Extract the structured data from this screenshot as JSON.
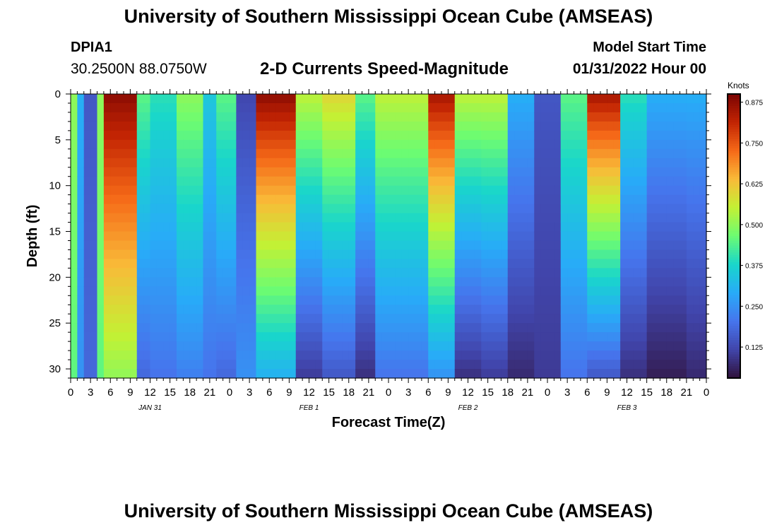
{
  "page": {
    "title": "University of Southern Mississippi Ocean Cube (AMSEAS)",
    "footer_title": "University of Southern Mississippi Ocean Cube (AMSEAS)",
    "station_id": "DPIA1",
    "station_coords": "30.2500N  88.0750W",
    "model_start_label": "Model Start Time",
    "model_start_value": "01/31/2022 Hour 00"
  },
  "chart_data": {
    "type": "heatmap",
    "title": "2-D Currents Speed-Magnitude",
    "xlabel": "Forecast Time(Z)",
    "ylabel": "Depth (ft)",
    "x_tick_labels": [
      "0",
      "3",
      "6",
      "9",
      "12",
      "15",
      "18",
      "21",
      "0",
      "3",
      "6",
      "9",
      "12",
      "15",
      "18",
      "21",
      "0",
      "3",
      "6",
      "9",
      "12",
      "15",
      "18",
      "21",
      "0",
      "3",
      "6",
      "9",
      "12",
      "15",
      "18",
      "21",
      "0"
    ],
    "x_range_hours": [
      0,
      96
    ],
    "date_labels": [
      {
        "label": "JAN 31",
        "hour": 12
      },
      {
        "label": "FEB 1",
        "hour": 36
      },
      {
        "label": "FEB 2",
        "hour": 60
      },
      {
        "label": "FEB 3",
        "hour": 84
      }
    ],
    "y_tick_labels": [
      "0",
      "5",
      "10",
      "15",
      "20",
      "25",
      "30"
    ],
    "y_range_ft": [
      0,
      31
    ],
    "colorbar": {
      "label": "Knots",
      "ticks": [
        "0.125",
        "0.250",
        "0.375",
        "0.500",
        "0.625",
        "0.750",
        "0.875"
      ],
      "range": [
        0.03,
        0.9
      ]
    },
    "structure_note": "Speed in knots by forecast hour; each band gives hour range with surface and bottom speed.",
    "bands": [
      {
        "start": 0,
        "end": 1,
        "surface": 0.5,
        "bottom": 0.45
      },
      {
        "start": 1,
        "end": 2,
        "surface": 0.3,
        "bottom": 0.25
      },
      {
        "start": 2,
        "end": 4,
        "surface": 0.15,
        "bottom": 0.18
      },
      {
        "start": 4,
        "end": 4.8,
        "surface": 0.5,
        "bottom": 0.45
      },
      {
        "start": 4.8,
        "end": 10.5,
        "surface": 0.88,
        "bottom": 0.5
      },
      {
        "start": 10.5,
        "end": 11.8,
        "surface": 0.45,
        "bottom": 0.18
      },
      {
        "start": 11.8,
        "end": 16,
        "surface": 0.4,
        "bottom": 0.2
      },
      {
        "start": 16,
        "end": 20,
        "surface": 0.5,
        "bottom": 0.22
      },
      {
        "start": 20,
        "end": 22,
        "surface": 0.35,
        "bottom": 0.2
      },
      {
        "start": 22,
        "end": 25.5,
        "surface": 0.45,
        "bottom": 0.18
      },
      {
        "start": 25.5,
        "end": 28,
        "surface": 0.12,
        "bottom": 0.25
      },
      {
        "start": 28,
        "end": 34.5,
        "surface": 0.88,
        "bottom": 0.3
      },
      {
        "start": 34.5,
        "end": 38,
        "surface": 0.55,
        "bottom": 0.1
      },
      {
        "start": 38,
        "end": 43,
        "surface": 0.6,
        "bottom": 0.15
      },
      {
        "start": 43,
        "end": 46,
        "surface": 0.45,
        "bottom": 0.08
      },
      {
        "start": 46,
        "end": 54,
        "surface": 0.55,
        "bottom": 0.2
      },
      {
        "start": 54,
        "end": 58.5,
        "surface": 0.85,
        "bottom": 0.25
      },
      {
        "start": 58.5,
        "end": 62,
        "surface": 0.55,
        "bottom": 0.08
      },
      {
        "start": 62,
        "end": 66,
        "surface": 0.55,
        "bottom": 0.1
      },
      {
        "start": 66,
        "end": 70,
        "surface": 0.3,
        "bottom": 0.07
      },
      {
        "start": 70,
        "end": 74,
        "surface": 0.15,
        "bottom": 0.1
      },
      {
        "start": 74,
        "end": 78,
        "surface": 0.45,
        "bottom": 0.2
      },
      {
        "start": 78,
        "end": 83,
        "surface": 0.85,
        "bottom": 0.15
      },
      {
        "start": 83,
        "end": 87,
        "surface": 0.4,
        "bottom": 0.08
      },
      {
        "start": 87,
        "end": 93,
        "surface": 0.3,
        "bottom": 0.05
      },
      {
        "start": 93,
        "end": 96,
        "surface": 0.3,
        "bottom": 0.07
      }
    ]
  }
}
